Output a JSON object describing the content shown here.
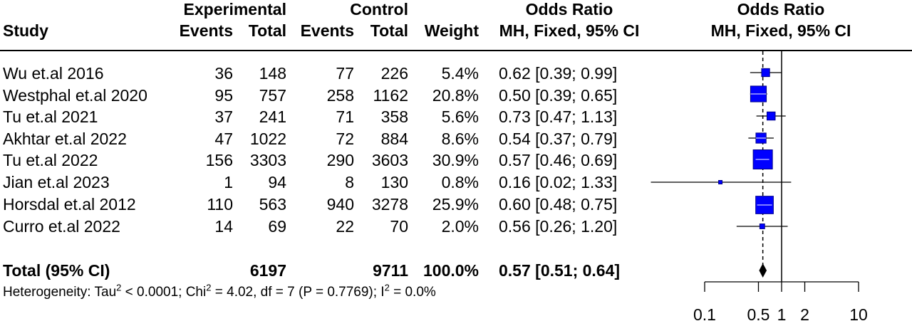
{
  "headers": {
    "study": "Study",
    "experimental": "Experimental",
    "control": "Control",
    "events_exp": "Events",
    "total_exp": "Total",
    "events_ctl": "Events",
    "total_ctl": "Total",
    "weight": "Weight",
    "or_title": "Odds Ratio",
    "or_sub": "MH, Fixed, 95% CI",
    "plot_title": "Odds Ratio",
    "plot_sub": "MH, Fixed, 95% CI"
  },
  "studies": [
    {
      "study": "Wu et.al 2016",
      "exp_events": "36",
      "exp_total": "148",
      "ctl_events": "77",
      "ctl_total": "226",
      "weight": "5.4%",
      "ci_text": "0.62 [0.39; 0.99]"
    },
    {
      "study": "Westphal et.al 2020",
      "exp_events": "95",
      "exp_total": "757",
      "ctl_events": "258",
      "ctl_total": "1162",
      "weight": "20.8%",
      "ci_text": "0.50 [0.39; 0.65]"
    },
    {
      "study": "Tu et.al 2021",
      "exp_events": "37",
      "exp_total": "241",
      "ctl_events": "71",
      "ctl_total": "358",
      "weight": "5.6%",
      "ci_text": "0.73 [0.47; 1.13]"
    },
    {
      "study": "Akhtar et.al 2022",
      "exp_events": "47",
      "exp_total": "1022",
      "ctl_events": "72",
      "ctl_total": "884",
      "weight": "8.6%",
      "ci_text": "0.54 [0.37; 0.79]"
    },
    {
      "study": "Tu et.al 2022",
      "exp_events": "156",
      "exp_total": "3303",
      "ctl_events": "290",
      "ctl_total": "3603",
      "weight": "30.9%",
      "ci_text": "0.57 [0.46; 0.69]"
    },
    {
      "study": "Jian et.al 2023",
      "exp_events": "1",
      "exp_total": "94",
      "ctl_events": "8",
      "ctl_total": "130",
      "weight": "0.8%",
      "ci_text": "0.16 [0.02; 1.33]"
    },
    {
      "study": "Horsdal et.al 2012",
      "exp_events": "110",
      "exp_total": "563",
      "ctl_events": "940",
      "ctl_total": "3278",
      "weight": "25.9%",
      "ci_text": "0.60 [0.48; 0.75]"
    },
    {
      "study": "Curro et.al 2022",
      "exp_events": "14",
      "exp_total": "69",
      "ctl_events": "22",
      "ctl_total": "70",
      "weight": "2.0%",
      "ci_text": "0.56 [0.26; 1.20]"
    }
  ],
  "total": {
    "label": "Total (95% CI)",
    "exp_total": "6197",
    "ctl_total": "9711",
    "weight": "100.0%",
    "ci_text": "0.57 [0.51; 0.64]"
  },
  "heterogeneity": {
    "p1": "Heterogeneity: Tau",
    "s1": "2",
    "p2": " < 0.0001; Chi",
    "s2": "2",
    "p3": " = 4.02, df = 7 (P = 0.7769); I",
    "s3": "2",
    "p4": " = 0.0%"
  },
  "colors": {
    "box": "#0000ff",
    "marker_border": "#00008b",
    "diamond": "#000000"
  },
  "chart_data": {
    "type": "forest",
    "scale": "log",
    "xlim": [
      0.1,
      10
    ],
    "ticks": [
      0.1,
      0.5,
      1,
      2,
      10
    ],
    "tick_labels": [
      "0.1",
      "0.5",
      "1",
      "2",
      "10"
    ],
    "reference_line": 1,
    "pooled_line": 0.57,
    "points": [
      {
        "or": 0.62,
        "lo": 0.39,
        "hi": 0.99,
        "weight": 5.4
      },
      {
        "or": 0.5,
        "lo": 0.39,
        "hi": 0.65,
        "weight": 20.8
      },
      {
        "or": 0.73,
        "lo": 0.47,
        "hi": 1.13,
        "weight": 5.6
      },
      {
        "or": 0.54,
        "lo": 0.37,
        "hi": 0.79,
        "weight": 8.6
      },
      {
        "or": 0.57,
        "lo": 0.46,
        "hi": 0.69,
        "weight": 30.9
      },
      {
        "or": 0.16,
        "lo": 0.02,
        "hi": 1.33,
        "weight": 0.8
      },
      {
        "or": 0.6,
        "lo": 0.48,
        "hi": 0.75,
        "weight": 25.9
      },
      {
        "or": 0.56,
        "lo": 0.26,
        "hi": 1.2,
        "weight": 2.0
      }
    ],
    "pooled": {
      "or": 0.57,
      "lo": 0.51,
      "hi": 0.64
    }
  }
}
